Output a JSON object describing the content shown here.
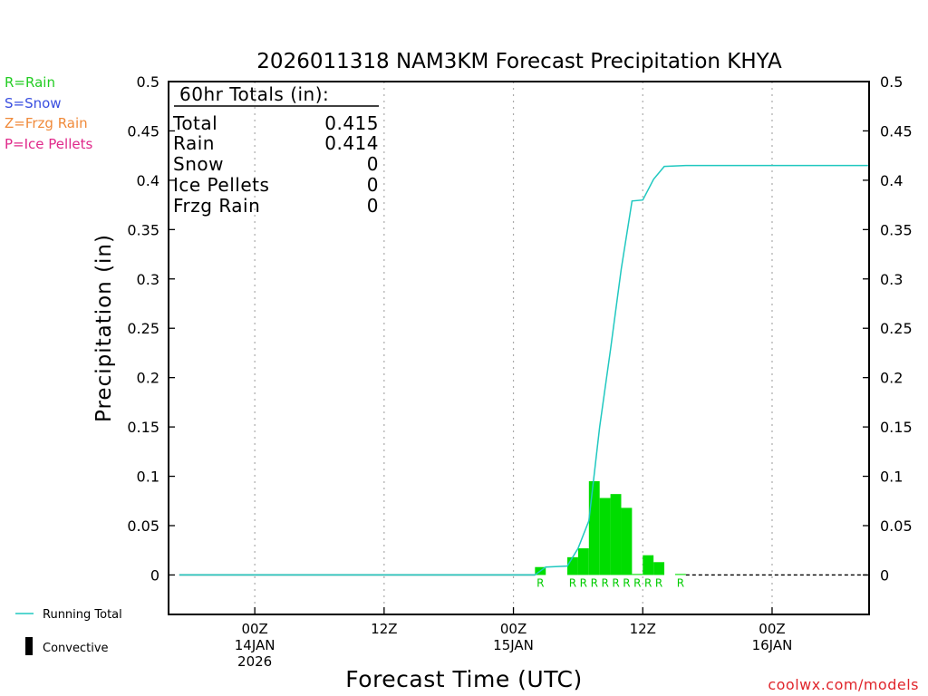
{
  "chart_data": {
    "type": "bar",
    "title": "2026011318 NAM3KM Forecast Precipitation KHYA",
    "ylabel": "Precipitation (in)",
    "xlabel": "Forecast Time (UTC)",
    "ylim": [
      -0.04,
      0.5
    ],
    "y_ticks": [
      0,
      0.05,
      0.1,
      0.15,
      0.2,
      0.25,
      0.3,
      0.35,
      0.4,
      0.45,
      0.5
    ],
    "y_tick_labels": [
      "0",
      "0.05",
      "0.1",
      "0.15",
      "0.2",
      "0.25",
      "0.3",
      "0.35",
      "0.4",
      "0.45",
      "0.5"
    ],
    "x_unit": "forecast hour from 2026-01-13 18Z",
    "xlim": [
      -2,
      63
    ],
    "x_ticks": [
      {
        "hour": 6,
        "lines": [
          "00Z",
          "14JAN",
          "2026"
        ]
      },
      {
        "hour": 18,
        "lines": [
          "12Z"
        ]
      },
      {
        "hour": 30,
        "lines": [
          "00Z",
          "15JAN"
        ]
      },
      {
        "hour": 42,
        "lines": [
          "12Z"
        ]
      },
      {
        "hour": 54,
        "lines": [
          "00Z",
          "16JAN"
        ]
      }
    ],
    "grid": "vertical dotted",
    "bars": {
      "name": "Rain",
      "hour_width": 1,
      "x": [
        33,
        36,
        37,
        38,
        39,
        40,
        41,
        42,
        43,
        44,
        46
      ],
      "values": [
        0.008,
        0.018,
        0.027,
        0.095,
        0.078,
        0.082,
        0.068,
        0.001,
        0.02,
        0.013,
        0.001
      ],
      "ptype": [
        "R",
        "R",
        "R",
        "R",
        "R",
        "R",
        "R",
        "R",
        "R",
        "R",
        "R"
      ]
    },
    "running_total": {
      "name": "Running Total",
      "x": [
        -1,
        32,
        33,
        35,
        36,
        37,
        38,
        39,
        40,
        41,
        42,
        43,
        44,
        46,
        51,
        62.9
      ],
      "values": [
        0,
        0,
        0.008,
        0.009,
        0.027,
        0.055,
        0.15,
        0.228,
        0.31,
        0.379,
        0.38,
        0.401,
        0.414,
        0.415,
        0.415,
        0.415
      ]
    },
    "colors": {
      "rain": "#00dd00",
      "running_total": "#20c8c0",
      "grid": "#aaaaaa"
    }
  },
  "totals_box": {
    "heading": "60hr Totals (in):",
    "rows": [
      {
        "label": "Total",
        "value": "0.415"
      },
      {
        "label": "Rain",
        "value": "0.414"
      },
      {
        "label": "Snow",
        "value": "0"
      },
      {
        "label": "Ice Pellets",
        "value": "0"
      },
      {
        "label": "Frzg Rain",
        "value": "0"
      }
    ]
  },
  "ptype_key": [
    {
      "text": "R=Rain",
      "color": "#22cc22"
    },
    {
      "text": "S=Snow",
      "color": "#3a4fe0"
    },
    {
      "text": "Z=Frzg Rain",
      "color": "#f08a3a"
    },
    {
      "text": "P=Ice Pellets",
      "color": "#e0288a"
    }
  ],
  "legend": {
    "running_total": "Running Total",
    "convective": "Convective"
  },
  "credit": "coolwx.com/models"
}
